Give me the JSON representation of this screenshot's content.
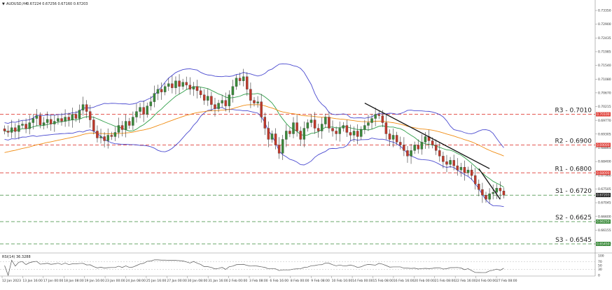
{
  "chart_data": {
    "type": "candlestick",
    "header": {
      "marker": "▼",
      "symbol": "AUDUSD,H4",
      "ohlc": "0.67224 0.67256 0.67160 0.67203"
    },
    "price_axis": {
      "ylim": [
        0.653,
        0.739
      ],
      "ticks": [
        "0.73350",
        "0.72900",
        "0.72435",
        "0.71985",
        "0.71540",
        "0.71080",
        "0.70670",
        "0.70215",
        "0.69770",
        "0.69305",
        "0.68865",
        "0.68400",
        "0.67960",
        "0.67505",
        "0.67045",
        "0.66600",
        "0.66155",
        "0.65700"
      ]
    },
    "price_tags": [
      {
        "text": "0.70100",
        "value": 0.701,
        "color": "#e0413a"
      },
      {
        "text": "0.69000",
        "value": 0.69,
        "color": "#e0413a"
      },
      {
        "text": "0.68000",
        "value": 0.68,
        "color": "#e0413a"
      },
      {
        "text": "0.67203",
        "value": 0.67203,
        "color": "#222222"
      },
      {
        "text": "0.66250",
        "value": 0.6625,
        "color": "#3a8a3a"
      },
      {
        "text": "0.65450",
        "value": 0.6545,
        "color": "#3a8a3a"
      }
    ],
    "levels": [
      {
        "label": "R3 - 0.7010",
        "value": 0.701,
        "kind": "resistance",
        "color": "#e0413a"
      },
      {
        "label": "R2 - 0.6900",
        "value": 0.69,
        "kind": "resistance",
        "color": "#e0413a"
      },
      {
        "label": "R1 - 0.6800",
        "value": 0.68,
        "kind": "resistance",
        "color": "#e0413a"
      },
      {
        "label": "S1 - 0.6720",
        "value": 0.672,
        "kind": "support",
        "color": "#3a8a3a"
      },
      {
        "label": "S2 - 0.6625",
        "value": 0.6625,
        "kind": "support",
        "color": "#3a8a3a"
      },
      {
        "label": "S3 - 0.6545",
        "value": 0.6545,
        "kind": "support",
        "color": "#3a8a3a"
      }
    ],
    "x_ticks": [
      "12 Jan 2023",
      "13 Jan 16:00",
      "17 Jan 00:00",
      "18 Jan 08:00",
      "19 Jan 16:00",
      "23 Jan 00:00",
      "24 Jan 08:00",
      "25 Jan 16:00",
      "27 Jan 00:00",
      "30 Jan 08:00",
      "31 Jan 16:00",
      "2 Feb 00:00",
      "3 Feb 08:00",
      "6 Feb 16:00",
      "8 Feb 00:00",
      "9 Feb 08:00",
      "10 Feb 16:00",
      "14 Feb 00:00",
      "15 Feb 08:00",
      "16 Feb 16:00",
      "20 Feb 00:00",
      "21 Feb 08:00",
      "22 Feb 16:00",
      "24 Feb 00:00",
      "27 Feb 08:00"
    ],
    "closes": [
      0.695,
      0.6945,
      0.6962,
      0.6948,
      0.697,
      0.6975,
      0.6958,
      0.698,
      0.6995,
      0.7005,
      0.6972,
      0.698,
      0.6992,
      0.6975,
      0.6985,
      0.6995,
      0.6985,
      0.7,
      0.699,
      0.701,
      0.6995,
      0.7025,
      0.7045,
      0.702,
      0.699,
      0.695,
      0.6925,
      0.693,
      0.6915,
      0.6935,
      0.693,
      0.6945,
      0.697,
      0.6955,
      0.6985,
      0.697,
      0.7,
      0.702,
      0.7035,
      0.701,
      0.704,
      0.7055,
      0.7085,
      0.71,
      0.709,
      0.711,
      0.712,
      0.7105,
      0.713,
      0.711,
      0.7125,
      0.7115,
      0.71,
      0.711,
      0.7095,
      0.708,
      0.706,
      0.7075,
      0.7045,
      0.703,
      0.705,
      0.706,
      0.704,
      0.708,
      0.711,
      0.714,
      0.713,
      0.7145,
      0.71,
      0.706,
      0.705,
      0.7055,
      0.7,
      0.696,
      0.692,
      0.694,
      0.69,
      0.687,
      0.692,
      0.695,
      0.694,
      0.698,
      0.695,
      0.692,
      0.696,
      0.698,
      0.699,
      0.696,
      0.695,
      0.6975,
      0.7,
      0.696,
      0.695,
      0.694,
      0.696,
      0.697,
      0.6945,
      0.6935,
      0.695,
      0.693,
      0.6955,
      0.697,
      0.698,
      0.6995,
      0.701,
      0.7005,
      0.698,
      0.694,
      0.692,
      0.6935,
      0.691,
      0.69,
      0.688,
      0.686,
      0.688,
      0.69,
      0.6885,
      0.691,
      0.693,
      0.6915,
      0.69,
      0.688,
      0.686,
      0.684,
      0.683,
      0.6845,
      0.6825,
      0.681,
      0.682,
      0.68,
      0.681,
      0.679,
      0.676,
      0.674,
      0.672,
      0.6705,
      0.6725,
      0.673,
      0.6745,
      0.6735,
      0.672
    ],
    "rsi": {
      "label": "RSI(14) 36.3288",
      "value": 36.3288,
      "ticks": [
        "100",
        "70",
        "50",
        "30",
        "0"
      ]
    },
    "trendlines": 2,
    "indicators": [
      "Bollinger Bands (blue)",
      "Moving average (green)",
      "Moving average (orange)"
    ],
    "grid": false
  }
}
